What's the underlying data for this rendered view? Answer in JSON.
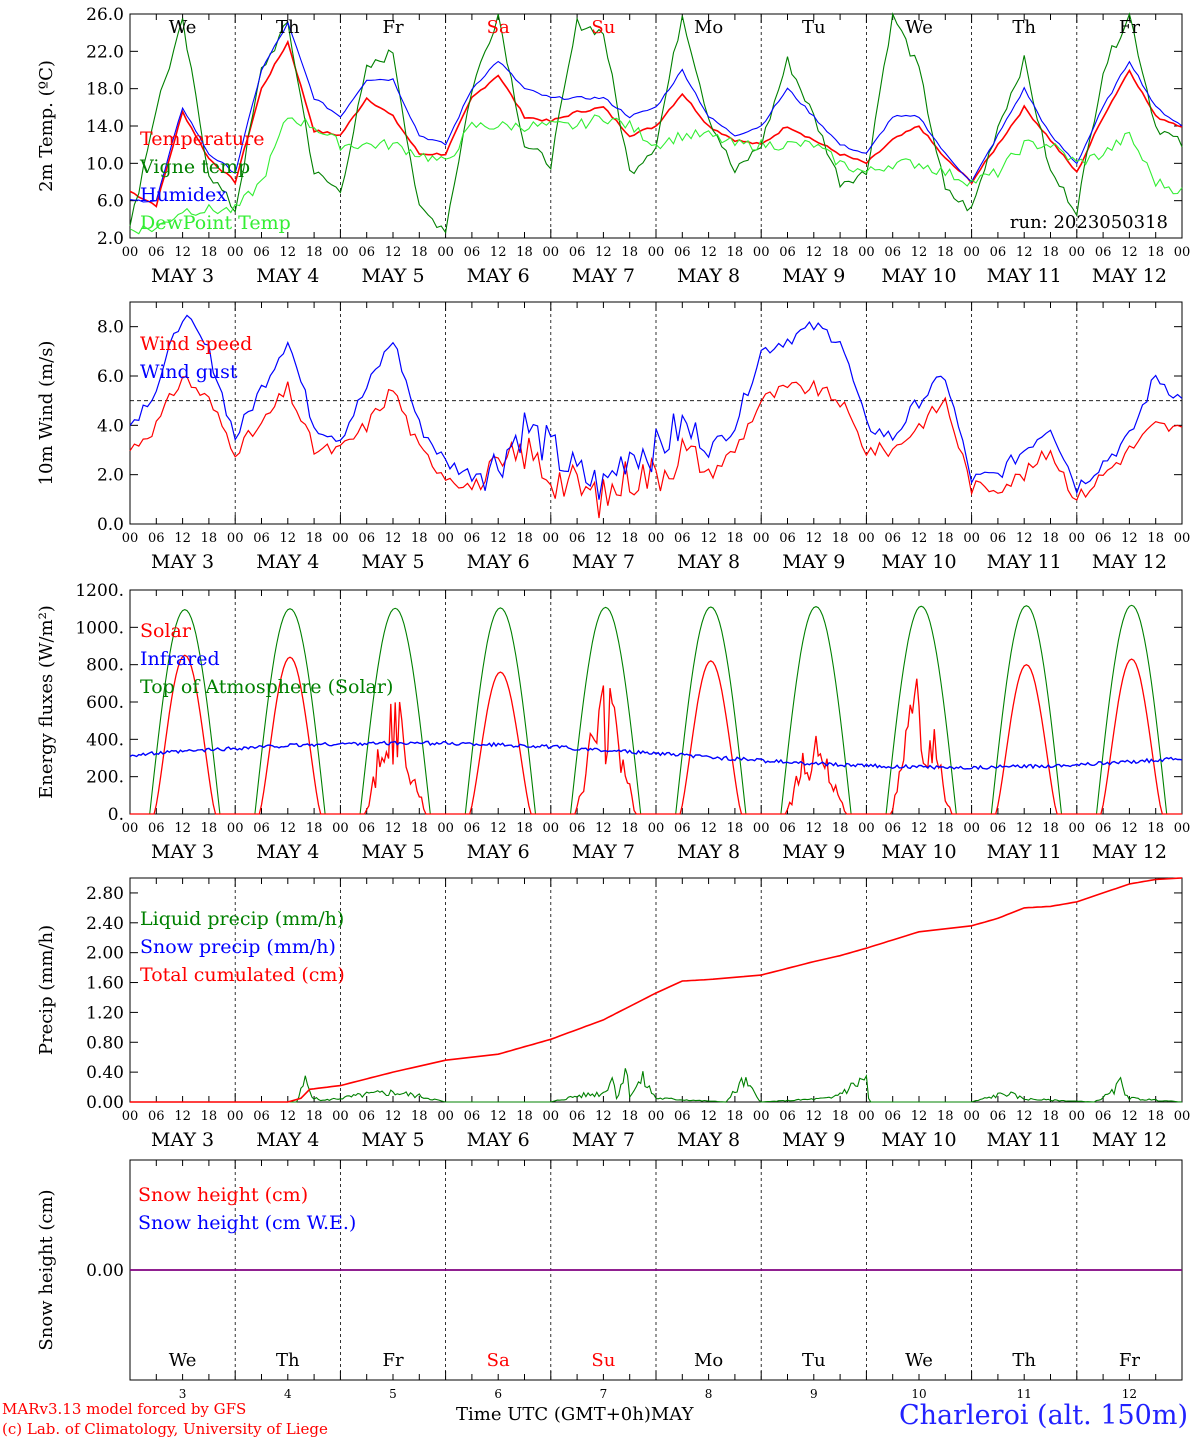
{
  "header": {},
  "footer": {
    "credit_line1": "MARv3.13 model forced by GFS",
    "credit_line2": "(c) Lab. of Climatology, University of Liege",
    "time_axis_label": "Time UTC (GMT+0h)",
    "month_label": "MAY",
    "station": "Charleroi (alt. 150m)"
  },
  "colors": {
    "red": "#ff0000",
    "blue": "#0000ff",
    "green": "#008000",
    "light_green": "#33ee33",
    "weekend": "#ff0000",
    "snow_line": "#800080"
  },
  "day_names": [
    "We",
    "Th",
    "Fr",
    "Sa",
    "Su",
    "Mo",
    "Tu",
    "We",
    "Th",
    "Fr"
  ],
  "weekend_index": [
    3,
    4
  ],
  "dates": [
    "MAY  3",
    "MAY  4",
    "MAY  5",
    "MAY  6",
    "MAY  7",
    "MAY  8",
    "MAY  9",
    "MAY 10",
    "MAY 11",
    "MAY 12"
  ],
  "day_numbers": [
    "3",
    "4",
    "5",
    "6",
    "7",
    "8",
    "9",
    "10",
    "11",
    "12"
  ],
  "hour_ticks": [
    "00",
    "06",
    "12",
    "18"
  ],
  "chart_data": [
    {
      "type": "line",
      "ylabel": "2m Temp. (ºC)",
      "ylim": [
        2,
        26
      ],
      "yticks": [
        "2.0",
        "6.0",
        "10.0",
        "14.0",
        "18.0",
        "22.0",
        "26.0"
      ],
      "annotation": "run: 2023050318",
      "legend": [
        "Temperature",
        "Vigne temp",
        "Humidex",
        "DewPoint Temp"
      ],
      "x_hours": [
        0,
        6,
        12,
        18,
        24,
        30,
        36,
        42,
        48,
        54,
        60,
        66,
        72,
        78,
        84,
        90,
        96,
        102,
        108,
        114,
        120,
        126,
        132,
        138,
        144,
        150,
        156,
        162,
        168,
        174,
        180,
        186,
        192,
        198,
        204,
        210,
        216,
        222,
        228,
        234,
        240
      ],
      "series": [
        {
          "name": "Temperature",
          "values": [
            7,
            5.5,
            15.5,
            10.5,
            8,
            18,
            23,
            13.5,
            13,
            17,
            15,
            11,
            11,
            17,
            19.5,
            15,
            14.5,
            15.5,
            16,
            13,
            14,
            17.5,
            14,
            12.5,
            12,
            14,
            12.5,
            11,
            10,
            12.5,
            14,
            10.5,
            8,
            12,
            16,
            12.5,
            9,
            15,
            20,
            15,
            14
          ]
        },
        {
          "name": "Vigne temp",
          "values": [
            3,
            16,
            25,
            9,
            5,
            20,
            25,
            9,
            7,
            20,
            22,
            5,
            3,
            18,
            26,
            12,
            10,
            25,
            24,
            9,
            12,
            26,
            15,
            9,
            12,
            21,
            15,
            8,
            9,
            26,
            20,
            7,
            5,
            14,
            21,
            9,
            5,
            20,
            26,
            14,
            12
          ]
        },
        {
          "name": "Humidex",
          "values": [
            6,
            6,
            16,
            11,
            9,
            20,
            25,
            17,
            15,
            19,
            19,
            13,
            12,
            18,
            21,
            18,
            17,
            17,
            17,
            15,
            16,
            20,
            15,
            13,
            14,
            18,
            15,
            12,
            11,
            15,
            15,
            11,
            8,
            13,
            18,
            13,
            10,
            16,
            21,
            16,
            14
          ]
        },
        {
          "name": "DewPoint Temp",
          "values": [
            3,
            3,
            5,
            5,
            5,
            8,
            15,
            14,
            12,
            12,
            12,
            11,
            10,
            14,
            14,
            14,
            14,
            14,
            15,
            14,
            12,
            13,
            13,
            12,
            12,
            12,
            12,
            10,
            9,
            10,
            10,
            9,
            8,
            9,
            12,
            12,
            10,
            11,
            13,
            8,
            7
          ]
        }
      ]
    },
    {
      "type": "line",
      "ylabel": "10m Wind (m/s)",
      "ylim": [
        0,
        9
      ],
      "yticks": [
        "0.0",
        "2.0",
        "4.0",
        "6.0",
        "8.0"
      ],
      "reference_line": 5.0,
      "legend": [
        "Wind speed",
        "Wind gust"
      ],
      "x_hours": [
        0,
        6,
        12,
        18,
        24,
        30,
        36,
        42,
        48,
        54,
        60,
        66,
        72,
        78,
        84,
        90,
        96,
        102,
        108,
        114,
        120,
        126,
        132,
        138,
        144,
        150,
        156,
        162,
        168,
        174,
        180,
        186,
        192,
        198,
        204,
        210,
        216,
        222,
        228,
        234,
        240
      ],
      "series": [
        {
          "name": "Wind speed",
          "values": [
            3,
            4,
            6,
            5,
            3,
            4,
            5.5,
            3,
            3,
            4,
            5.5,
            3,
            2,
            1.5,
            2,
            3,
            2,
            1.5,
            1,
            2,
            2,
            3,
            2,
            3,
            5,
            5.5,
            5.5,
            5,
            3,
            3,
            4,
            5,
            1.5,
            1.5,
            2,
            3,
            1,
            2,
            3,
            4,
            3.8
          ]
        },
        {
          "name": "Wind gust",
          "values": [
            4,
            5.5,
            8.5,
            7,
            3.5,
            5.5,
            7.5,
            4,
            3.5,
            5.5,
            7.5,
            4,
            2.5,
            2,
            2.5,
            4,
            3,
            2,
            1.5,
            3,
            3,
            4,
            3,
            4,
            7,
            7.5,
            8,
            7.5,
            4,
            3.5,
            5,
            6,
            1.8,
            2,
            3,
            4,
            1.5,
            2.5,
            3.5,
            6,
            5
          ]
        }
      ]
    },
    {
      "type": "line",
      "ylabel": "Energy fluxes (W/m²)",
      "ylim": [
        0,
        1200
      ],
      "yticks": [
        "0.",
        "200.",
        "400.",
        "600.",
        "800.",
        "1000.",
        "1200."
      ],
      "legend": [
        "Solar",
        "Infrared",
        "Top of Atmosphere (Solar)"
      ],
      "toa_peak_hour": 12.5,
      "toa_peaks": [
        1095,
        1100,
        1102,
        1104,
        1107,
        1109,
        1111,
        1113,
        1116,
        1118
      ],
      "solar_peaks": [
        850,
        840,
        650,
        760,
        700,
        820,
        480,
        760,
        800,
        830
      ],
      "infrared_range": [
        250,
        380
      ]
    },
    {
      "type": "line",
      "ylabel": "Precip (mm/h)",
      "ylim": [
        0,
        3.0
      ],
      "yticks": [
        "0.00",
        "0.40",
        "0.80",
        "1.20",
        "1.60",
        "2.00",
        "2.40",
        "2.80"
      ],
      "legend": [
        "Liquid precip (mm/h)",
        "Snow precip (mm/h)",
        "Total cumulated (cm)"
      ],
      "series": [
        {
          "name": "Total cumulated (cm)",
          "x_hours": [
            0,
            36,
            39,
            41,
            48,
            60,
            72,
            84,
            96,
            108,
            114,
            120,
            126,
            132,
            144,
            156,
            162,
            168,
            180,
            192,
            198,
            204,
            210,
            216,
            228,
            234,
            240
          ],
          "values": [
            0,
            0,
            0.05,
            0.17,
            0.22,
            0.4,
            0.56,
            0.64,
            0.84,
            1.1,
            1.28,
            1.46,
            1.62,
            1.64,
            1.7,
            1.88,
            1.96,
            2.06,
            2.28,
            2.36,
            2.46,
            2.6,
            2.62,
            2.68,
            2.92,
            2.98,
            3.0
          ]
        },
        {
          "name": "Liquid precip (mm/h)",
          "x_hours": [
            0,
            38,
            40,
            42,
            44,
            48,
            54,
            60,
            66,
            72,
            96,
            102,
            108,
            110,
            111,
            113,
            114,
            117,
            120,
            136,
            140,
            144,
            160,
            168,
            168.5,
            169,
            192,
            200,
            204,
            220,
            224,
            226,
            228,
            240
          ],
          "values": [
            0,
            0,
            0.28,
            0.05,
            0.02,
            0.05,
            0.1,
            0.13,
            0.08,
            0,
            0,
            0.08,
            0.12,
            0.35,
            0.05,
            0.45,
            0.1,
            0.3,
            0.05,
            0,
            0.28,
            0,
            0.05,
            0.32,
            0.05,
            0,
            0,
            0.12,
            0.04,
            0,
            0.12,
            0.25,
            0.05,
            0
          ]
        }
      ]
    },
    {
      "type": "line",
      "ylabel": "Snow height (cm)",
      "yticks": [
        "0.00"
      ],
      "legend": [
        "Snow height (cm)",
        "Snow height (cm W.E.)"
      ],
      "series": [
        {
          "name": "Snow height (cm)",
          "values": [
            0,
            0
          ]
        }
      ]
    }
  ]
}
